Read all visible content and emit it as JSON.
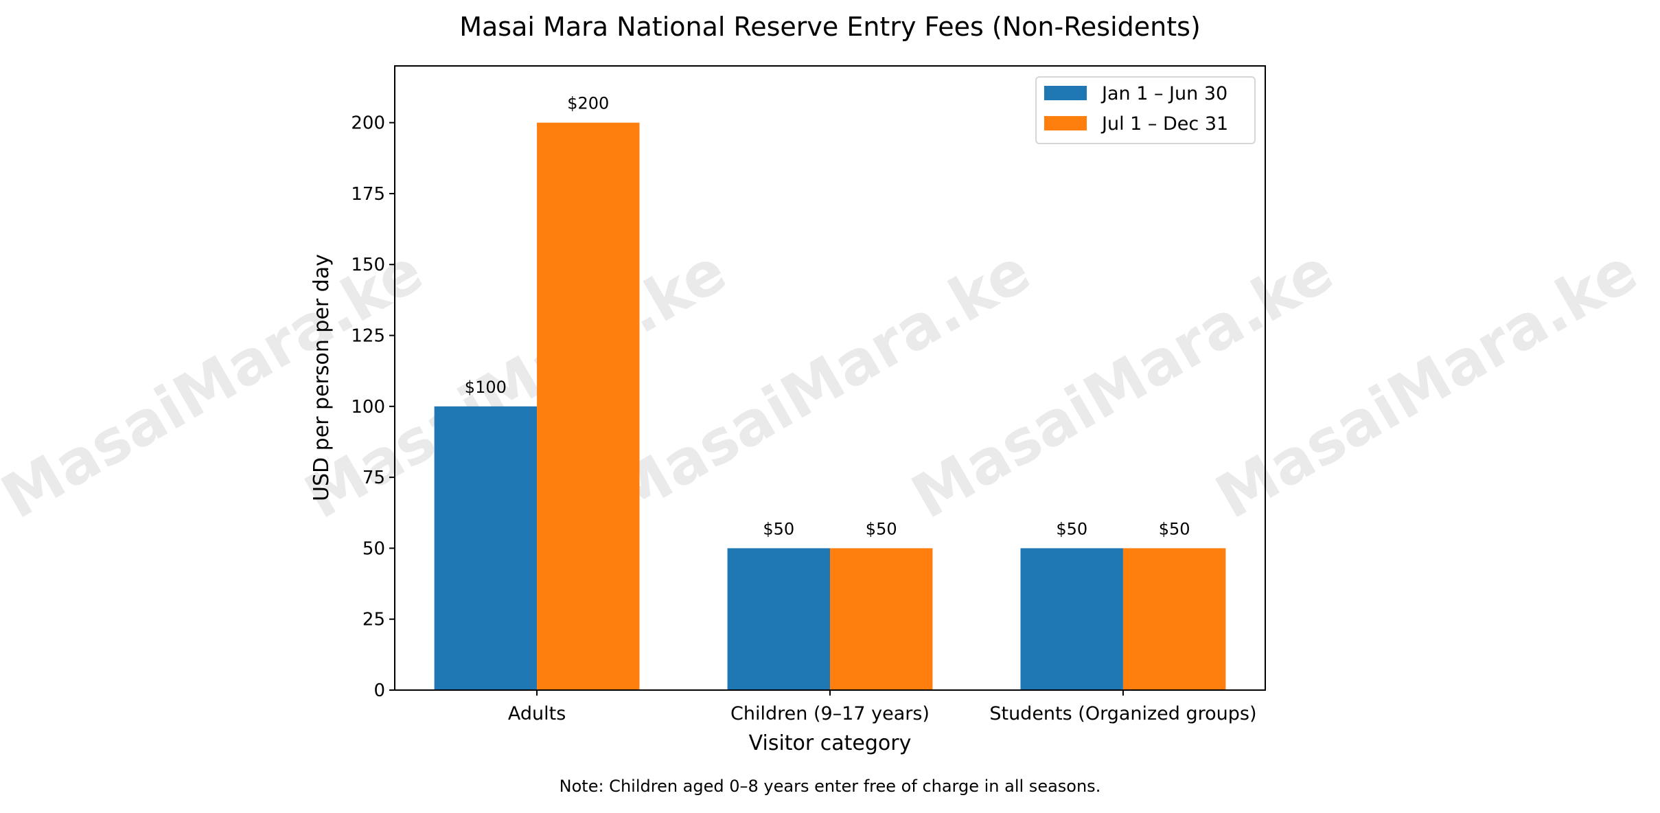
{
  "chart_data": {
    "type": "bar",
    "title": "Masai Mara National Reserve Entry Fees (Non-Residents)",
    "xlabel": "Visitor category",
    "ylabel": "USD per person per day",
    "categories": [
      "Adults",
      "Children (9–17 years)",
      "Students (Organized groups)"
    ],
    "series": [
      {
        "name": "Jan 1 – Jun 30",
        "values": [
          100,
          50,
          50
        ],
        "labels": [
          "$100",
          "$50",
          "$50"
        ],
        "color": "#1f77b4"
      },
      {
        "name": "Jul 1 – Dec 31",
        "values": [
          200,
          50,
          50
        ],
        "labels": [
          "$200",
          "$50",
          "$50"
        ],
        "color": "#ff7f0e"
      }
    ],
    "ylim": [
      0,
      220
    ],
    "yticks": [
      0,
      25,
      50,
      75,
      100,
      125,
      150,
      175,
      200
    ],
    "grid": false,
    "legend_position": "top-right",
    "note": "Note: Children aged 0–8 years enter free of charge in all seasons.",
    "watermark": "MasaiMara.ke"
  }
}
